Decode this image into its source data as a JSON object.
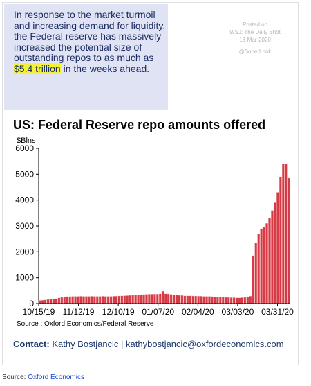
{
  "note": {
    "text_before": "In response to the market turmoil and increasing demand for liquidity, the Federal reserve has massively increased the potential size of outstanding repos to as much as ",
    "highlight": "$5.4 trillion",
    "text_after": " in the weeks ahead."
  },
  "posted": {
    "line1": "Posted on",
    "line2": "WSJ: The Daily Shot",
    "line3": "13-Mar-2020",
    "handle": "@SoberLook"
  },
  "chart_source": "Source : Oxford Economics/Federal Reserve",
  "contact": {
    "label": "Contact:",
    "text": " Kathy Bostjancic | kathybostjancic@oxfordeconomics.com"
  },
  "footer": {
    "label": "Source: ",
    "link": "Oxford Economics"
  },
  "colors": {
    "bar": "#d63a44",
    "bar_edge": "#f4c5c8",
    "note_bg": "#dfe3f3",
    "highlight": "#f2f23a"
  },
  "chart_data": {
    "type": "bar",
    "title": "US: Federal Reserve repo amounts offered",
    "ylabel": "$Blns",
    "xlabel": "",
    "ylim": [
      0,
      6000
    ],
    "yticks": [
      0,
      1000,
      2000,
      3000,
      4000,
      5000,
      6000
    ],
    "xtick_labels": [
      "10/15/19",
      "11/12/19",
      "12/10/19",
      "01/07/20",
      "02/04/20",
      "03/03/20",
      "03/31/20"
    ],
    "grid": false,
    "x_start": "2019-10-15",
    "x_end": "2020-04-09",
    "values": [
      120,
      130,
      140,
      160,
      170,
      180,
      190,
      220,
      240,
      260,
      270,
      275,
      280,
      280,
      280,
      285,
      280,
      280,
      280,
      285,
      280,
      280,
      280,
      285,
      280,
      280,
      280,
      285,
      290,
      295,
      300,
      305,
      310,
      320,
      325,
      330,
      340,
      345,
      355,
      360,
      365,
      365,
      370,
      370,
      380,
      480,
      380,
      375,
      360,
      340,
      330,
      320,
      315,
      300,
      300,
      300,
      295,
      295,
      290,
      290,
      280,
      280,
      280,
      270,
      260,
      250,
      250,
      250,
      240,
      240,
      230,
      230,
      220,
      220,
      230,
      240,
      260,
      290,
      1850,
      2350,
      2700,
      2900,
      2950,
      3100,
      3300,
      3600,
      3900,
      4300,
      4900,
      5400,
      5400,
      4850
    ]
  }
}
